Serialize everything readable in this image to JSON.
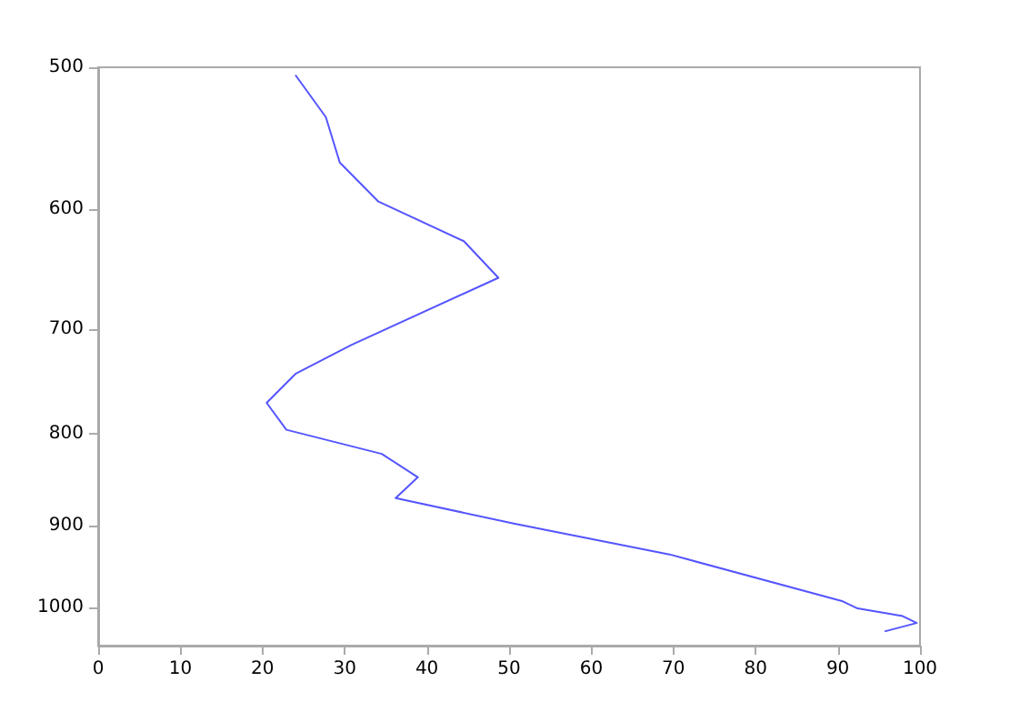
{
  "chart_data": {
    "type": "line",
    "log": "y",
    "grid": false,
    "marker": "none",
    "line_style": "solid",
    "xlim": [
      0,
      100
    ],
    "xticks": [
      0,
      10,
      20,
      30,
      40,
      50,
      60,
      70,
      80,
      90,
      100
    ],
    "ylim": [
      1050,
      500
    ],
    "yticks": [
      500,
      600,
      700,
      800,
      900,
      1000
    ],
    "series": [
      {
        "color": "#5555ff",
        "x": [
          24,
          27.7,
          29.4,
          34.1,
          44.5,
          48.7,
          30.8,
          24,
          20.5,
          22.9,
          34.5,
          38.9,
          36.2,
          50.7,
          69.5,
          90.6,
          92.4,
          97.9,
          99.6,
          95.7
        ],
        "values": [
          505,
          533,
          565,
          594,
          625,
          655,
          714,
          741,
          769,
          796,
          821,
          846,
          869,
          898,
          934,
          992,
          1001,
          1011,
          1020,
          1031
        ]
      }
    ]
  }
}
